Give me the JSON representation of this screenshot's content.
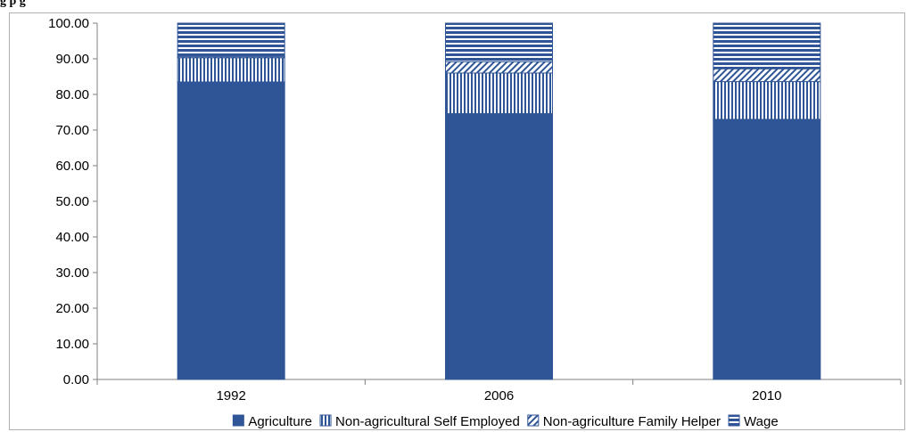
{
  "header_fragment": "g                                p    g",
  "chart_data": {
    "type": "bar",
    "stacked": true,
    "categories": [
      "1992",
      "2006",
      "2010"
    ],
    "series": [
      {
        "name": "Agriculture",
        "values": [
          83.5,
          74.6,
          73.0
        ],
        "color": "#2f5597",
        "pattern": "solid"
      },
      {
        "name": "Non-agricultural Self Employed",
        "values": [
          6.8,
          11.4,
          10.6
        ],
        "color": "#2f5597",
        "pattern": "vertical-lines"
      },
      {
        "name": "Non-agriculture Family Helper",
        "values": [
          0.3,
          3.2,
          3.6
        ],
        "color": "#2f5597",
        "pattern": "diagonal-lines"
      },
      {
        "name": "Wage",
        "values": [
          9.4,
          10.8,
          12.8
        ],
        "color": "#2f5597",
        "pattern": "horizontal-lines"
      }
    ],
    "y_ticks": [
      "0.00",
      "10.00",
      "20.00",
      "30.00",
      "40.00",
      "50.00",
      "60.00",
      "70.00",
      "80.00",
      "90.00",
      "100.00"
    ],
    "ylim": [
      0,
      100
    ],
    "legend_position": "bottom",
    "grid": false
  }
}
